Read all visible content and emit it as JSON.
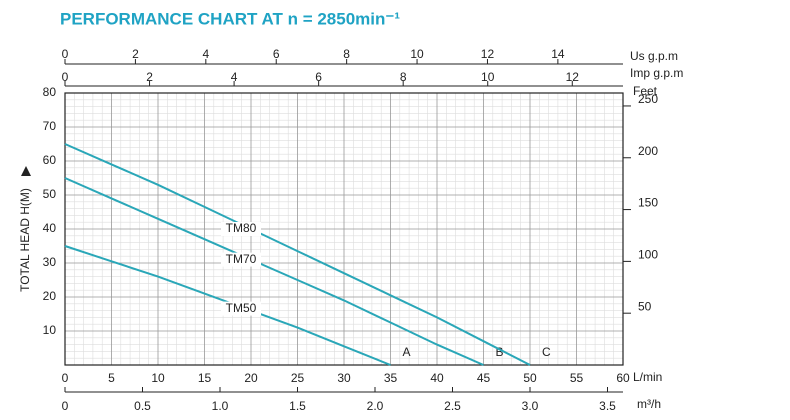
{
  "chart_data": {
    "type": "line",
    "title": "PERFORMANCE CHART AT n = 2850min⁻¹",
    "ylabel": "TOTAL HEAD H(M)",
    "ylim": [
      0,
      80
    ],
    "yticks": [
      10,
      20,
      30,
      40,
      50,
      60,
      70,
      80
    ],
    "xlabel": "L/min",
    "xlim": [
      0,
      60
    ],
    "xticks": [
      0,
      5,
      10,
      15,
      20,
      25,
      30,
      35,
      40,
      45,
      50,
      55,
      60
    ],
    "grid": true,
    "extra_axes": [
      {
        "position": "bottom",
        "label": "m³/h",
        "lim": [
          0,
          3.6
        ],
        "ticks": [
          0,
          0.5,
          {
            "value": 1,
            "label": "1.0"
          },
          1.5,
          {
            "value": 2,
            "label": "2.0"
          },
          2.5,
          {
            "value": 3,
            "label": "3.0"
          },
          3.5
        ]
      },
      {
        "position": "top",
        "label": "Us g.p.m",
        "lim": [
          0,
          15.85
        ],
        "ticks": [
          0,
          2,
          4,
          6,
          8,
          10,
          12,
          14
        ]
      },
      {
        "position": "top",
        "label": "Imp g.p.m",
        "lim": [
          0,
          13.2
        ],
        "ticks": [
          0,
          2,
          4,
          6,
          8,
          10,
          12
        ]
      },
      {
        "position": "right",
        "label": "Feet",
        "lim": [
          0,
          262.5
        ],
        "ticks": [
          50,
          100,
          150,
          200,
          250
        ]
      }
    ],
    "series": [
      {
        "name": "TM50",
        "end_label": "A",
        "color": "#2aa7b8",
        "x": [
          0,
          5,
          10,
          15,
          20,
          25,
          30,
          35
        ],
        "values": [
          35,
          30.5,
          26,
          21,
          16,
          11,
          5.5,
          0
        ]
      },
      {
        "name": "TM70",
        "end_label": "B",
        "color": "#2aa7b8",
        "x": [
          0,
          5,
          10,
          15,
          20,
          25,
          30,
          35,
          40,
          45
        ],
        "values": [
          55,
          49,
          43,
          37,
          31,
          25,
          19,
          12.5,
          6,
          0
        ]
      },
      {
        "name": "TM80",
        "end_label": "C",
        "color": "#2aa7b8",
        "x": [
          0,
          5,
          10,
          15,
          20,
          25,
          30,
          35,
          40,
          45,
          50
        ],
        "values": [
          65,
          59,
          53,
          46.5,
          40,
          33.5,
          27,
          20.5,
          14,
          7,
          0
        ]
      }
    ]
  }
}
